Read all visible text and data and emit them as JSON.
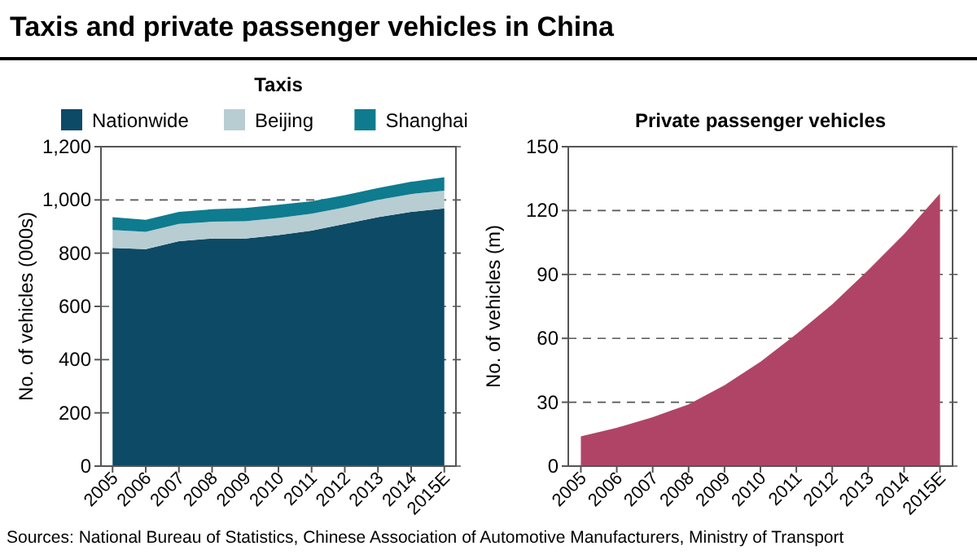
{
  "chart_data": [
    {
      "type": "area",
      "title": "Taxis and private passenger vehicles in China",
      "subtitle": "Taxis",
      "ylabel": "No. of vehicles (000s)",
      "stacked": true,
      "legend": "top",
      "grid": "y",
      "categories": [
        "2005",
        "2006",
        "2007",
        "2008",
        "2009",
        "2010",
        "2011",
        "2012",
        "2013",
        "2014",
        "2015E"
      ],
      "series": [
        {
          "name": "Nationwide",
          "color": "#0d4a66",
          "values": [
            820,
            815,
            845,
            855,
            855,
            868,
            885,
            910,
            935,
            955,
            968
          ]
        },
        {
          "name": "Beijing",
          "color": "#b8cdd1",
          "values": [
            67,
            65,
            65,
            63,
            65,
            64,
            63,
            62,
            65,
            67,
            67
          ]
        },
        {
          "name": "Shanghai",
          "color": "#0e7b8f",
          "values": [
            48,
            45,
            45,
            47,
            50,
            50,
            47,
            46,
            45,
            46,
            50
          ]
        }
      ],
      "ylim": [
        0,
        1200
      ],
      "yticks": [
        0,
        200,
        400,
        600,
        800,
        {
          "value": 1000,
          "label": "1,000"
        },
        {
          "value": 1200,
          "label": "1,200"
        }
      ]
    },
    {
      "type": "area",
      "title": "Private passenger vehicles",
      "ylabel": "No. of vehicles (m)",
      "grid": "y",
      "categories": [
        "2005",
        "2006",
        "2007",
        "2008",
        "2009",
        "2010",
        "2011",
        "2012",
        "2013",
        "2014",
        "2015E"
      ],
      "series": [
        {
          "color": "#b04467",
          "values": [
            14,
            18,
            23,
            29,
            38,
            49,
            62,
            76,
            92,
            109,
            128
          ]
        }
      ],
      "ylim": [
        0,
        150
      ],
      "yticks": [
        0,
        30,
        60,
        90,
        120,
        150
      ],
      "annotations": [
        "Sources: National Bureau of Statistics, Chinese Association of Automotive Manufacturers, Ministry of Transport"
      ]
    }
  ]
}
